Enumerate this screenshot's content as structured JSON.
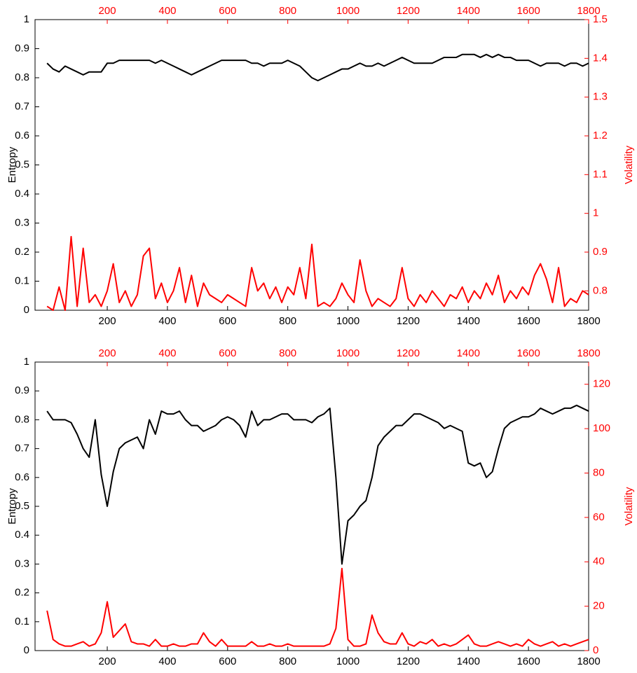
{
  "chart_data": [
    {
      "type": "line",
      "y_label": "Entropy",
      "y2_label": "Volatility",
      "grid": false,
      "x": [
        0,
        20,
        40,
        60,
        80,
        100,
        120,
        140,
        160,
        180,
        200,
        220,
        240,
        260,
        280,
        300,
        320,
        340,
        360,
        380,
        400,
        420,
        440,
        460,
        480,
        500,
        520,
        540,
        560,
        580,
        600,
        620,
        640,
        660,
        680,
        700,
        720,
        740,
        760,
        780,
        800,
        820,
        840,
        860,
        880,
        900,
        920,
        940,
        960,
        980,
        1000,
        1020,
        1040,
        1060,
        1080,
        1100,
        1120,
        1140,
        1160,
        1180,
        1200,
        1220,
        1240,
        1260,
        1280,
        1300,
        1320,
        1340,
        1360,
        1380,
        1400,
        1420,
        1440,
        1460,
        1480,
        1500,
        1520,
        1540,
        1560,
        1580,
        1600,
        1620,
        1640,
        1660,
        1680,
        1700,
        1720,
        1740,
        1760,
        1780,
        1800
      ],
      "xlim": [
        -40,
        1800
      ],
      "xticks": [
        200,
        400,
        600,
        800,
        1000,
        1200,
        1400,
        1600,
        1800
      ],
      "ylim": [
        0,
        1
      ],
      "yticks": [
        0,
        0.1,
        0.2,
        0.3,
        0.4,
        0.5,
        0.6,
        0.7,
        0.8,
        0.9,
        1
      ],
      "y2lim": [
        0.75,
        1.5
      ],
      "y2ticks": [
        0.8,
        0.9,
        1,
        1.1,
        1.2,
        1.3,
        1.4,
        1.5
      ],
      "series": [
        {
          "name": "Entropy",
          "color": "#000000",
          "values": [
            0.85,
            0.83,
            0.82,
            0.84,
            0.83,
            0.82,
            0.81,
            0.82,
            0.82,
            0.82,
            0.85,
            0.85,
            0.86,
            0.86,
            0.86,
            0.86,
            0.86,
            0.86,
            0.85,
            0.86,
            0.85,
            0.84,
            0.83,
            0.82,
            0.81,
            0.82,
            0.83,
            0.84,
            0.85,
            0.86,
            0.86,
            0.86,
            0.86,
            0.86,
            0.85,
            0.85,
            0.84,
            0.85,
            0.85,
            0.85,
            0.86,
            0.85,
            0.84,
            0.82,
            0.8,
            0.79,
            0.8,
            0.81,
            0.82,
            0.83,
            0.83,
            0.84,
            0.85,
            0.84,
            0.84,
            0.85,
            0.84,
            0.85,
            0.86,
            0.87,
            0.86,
            0.85,
            0.85,
            0.85,
            0.85,
            0.86,
            0.87,
            0.87,
            0.87,
            0.88,
            0.88,
            0.88,
            0.87,
            0.88,
            0.87,
            0.88,
            0.87,
            0.87,
            0.86,
            0.86,
            0.86,
            0.85,
            0.84,
            0.85,
            0.85,
            0.85,
            0.84,
            0.85,
            0.85,
            0.84,
            0.85
          ]
        },
        {
          "name": "Volatility",
          "color": "#ff0000",
          "axis": "y2",
          "values": [
            0.76,
            0.75,
            0.81,
            0.75,
            0.94,
            0.76,
            0.91,
            0.77,
            0.79,
            0.76,
            0.8,
            0.87,
            0.77,
            0.8,
            0.76,
            0.79,
            0.89,
            0.91,
            0.78,
            0.82,
            0.77,
            0.8,
            0.86,
            0.77,
            0.84,
            0.76,
            0.82,
            0.79,
            0.78,
            0.77,
            0.79,
            0.78,
            0.77,
            0.76,
            0.86,
            0.8,
            0.82,
            0.78,
            0.81,
            0.77,
            0.81,
            0.79,
            0.86,
            0.78,
            0.92,
            0.76,
            0.77,
            0.76,
            0.78,
            0.82,
            0.79,
            0.77,
            0.88,
            0.8,
            0.76,
            0.78,
            0.77,
            0.76,
            0.78,
            0.86,
            0.78,
            0.76,
            0.79,
            0.77,
            0.8,
            0.78,
            0.76,
            0.79,
            0.78,
            0.81,
            0.77,
            0.8,
            0.78,
            0.82,
            0.79,
            0.84,
            0.77,
            0.8,
            0.78,
            0.81,
            0.79,
            0.84,
            0.87,
            0.83,
            0.77,
            0.86,
            0.76,
            0.78,
            0.77,
            0.8,
            0.79
          ]
        }
      ]
    },
    {
      "type": "line",
      "y_label": "Entropy",
      "y2_label": "Volatility",
      "grid": false,
      "x": [
        0,
        20,
        40,
        60,
        80,
        100,
        120,
        140,
        160,
        180,
        200,
        220,
        240,
        260,
        280,
        300,
        320,
        340,
        360,
        380,
        400,
        420,
        440,
        460,
        480,
        500,
        520,
        540,
        560,
        580,
        600,
        620,
        640,
        660,
        680,
        700,
        720,
        740,
        760,
        780,
        800,
        820,
        840,
        860,
        880,
        900,
        920,
        940,
        960,
        980,
        1000,
        1020,
        1040,
        1060,
        1080,
        1100,
        1120,
        1140,
        1160,
        1180,
        1200,
        1220,
        1240,
        1260,
        1280,
        1300,
        1320,
        1340,
        1360,
        1380,
        1400,
        1420,
        1440,
        1460,
        1480,
        1500,
        1520,
        1540,
        1560,
        1580,
        1600,
        1620,
        1640,
        1660,
        1680,
        1700,
        1720,
        1740,
        1760,
        1780,
        1800
      ],
      "xlim": [
        -40,
        1800
      ],
      "xticks": [
        200,
        400,
        600,
        800,
        1000,
        1200,
        1400,
        1600,
        1800
      ],
      "ylim": [
        0,
        1
      ],
      "yticks": [
        0,
        0.1,
        0.2,
        0.3,
        0.4,
        0.5,
        0.6,
        0.7,
        0.8,
        0.9,
        1
      ],
      "y2lim": [
        0,
        130
      ],
      "y2ticks": [
        0,
        20,
        40,
        60,
        80,
        100,
        120
      ],
      "series": [
        {
          "name": "Entropy",
          "color": "#000000",
          "values": [
            0.83,
            0.8,
            0.8,
            0.8,
            0.79,
            0.75,
            0.7,
            0.67,
            0.8,
            0.61,
            0.5,
            0.62,
            0.7,
            0.72,
            0.73,
            0.74,
            0.7,
            0.8,
            0.75,
            0.83,
            0.82,
            0.82,
            0.83,
            0.8,
            0.78,
            0.78,
            0.76,
            0.77,
            0.78,
            0.8,
            0.81,
            0.8,
            0.78,
            0.74,
            0.83,
            0.78,
            0.8,
            0.8,
            0.81,
            0.82,
            0.82,
            0.8,
            0.8,
            0.8,
            0.79,
            0.81,
            0.82,
            0.84,
            0.6,
            0.3,
            0.45,
            0.47,
            0.5,
            0.52,
            0.6,
            0.71,
            0.74,
            0.76,
            0.78,
            0.78,
            0.8,
            0.82,
            0.82,
            0.81,
            0.8,
            0.79,
            0.77,
            0.78,
            0.77,
            0.76,
            0.65,
            0.64,
            0.65,
            0.6,
            0.62,
            0.7,
            0.77,
            0.79,
            0.8,
            0.81,
            0.81,
            0.82,
            0.84,
            0.83,
            0.82,
            0.83,
            0.84,
            0.84,
            0.85,
            0.84,
            0.83
          ]
        },
        {
          "name": "Volatility",
          "color": "#ff0000",
          "axis": "y2",
          "values": [
            18,
            5,
            3,
            2,
            2,
            3,
            4,
            2,
            3,
            8,
            22,
            6,
            9,
            12,
            4,
            3,
            3,
            2,
            5,
            2,
            2,
            3,
            2,
            2,
            3,
            3,
            8,
            4,
            2,
            5,
            2,
            2,
            2,
            2,
            4,
            2,
            2,
            3,
            2,
            2,
            3,
            2,
            2,
            2,
            2,
            2,
            2,
            3,
            10,
            37,
            5,
            2,
            2,
            3,
            16,
            8,
            4,
            3,
            3,
            8,
            3,
            2,
            4,
            3,
            5,
            2,
            3,
            2,
            3,
            5,
            7,
            3,
            2,
            2,
            3,
            4,
            3,
            2,
            3,
            2,
            5,
            3,
            2,
            3,
            4,
            2,
            3,
            2,
            3,
            4,
            5
          ]
        }
      ]
    }
  ]
}
